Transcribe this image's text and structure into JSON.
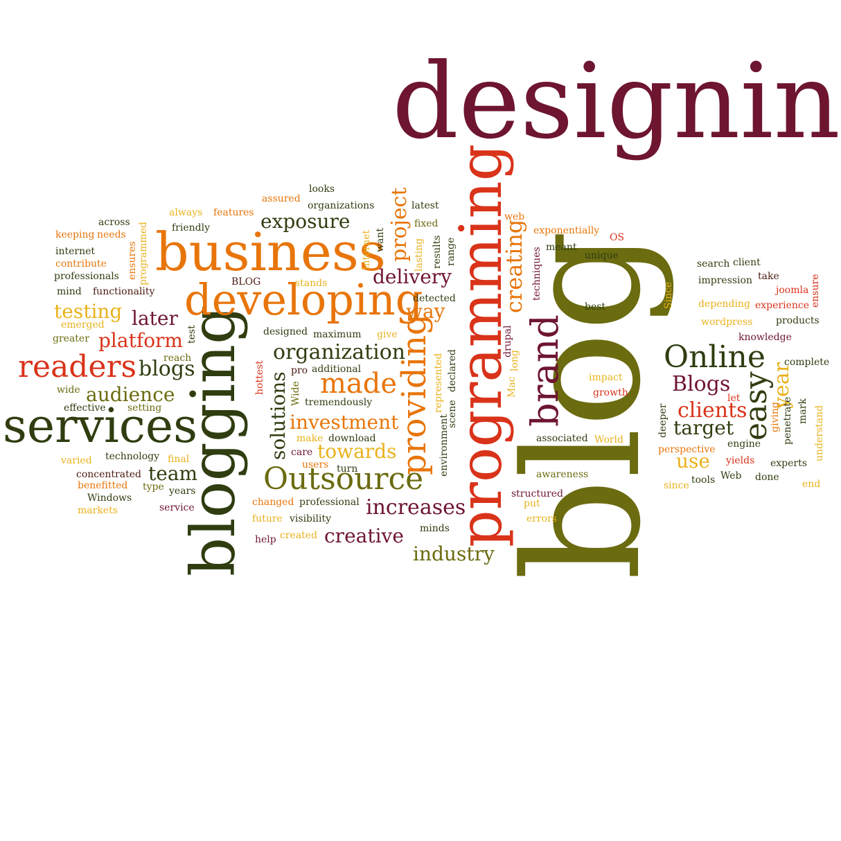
{
  "palette": {
    "maroon": "#6e1530",
    "orange": "#e8750a",
    "red": "#d9331a",
    "olive": "#6b6b10",
    "darkgreen": "#2f3d10",
    "gold": "#e9b21c",
    "brown": "#4a1a10"
  },
  "words": [
    {
      "id": "designing",
      "text": "designing"
    },
    {
      "id": "blog",
      "text": "blog"
    },
    {
      "id": "programming",
      "text": "programming"
    },
    {
      "id": "blogging",
      "text": "blogging"
    },
    {
      "id": "services",
      "text": "services"
    },
    {
      "id": "business",
      "text": "business"
    },
    {
      "id": "developing",
      "text": "developing"
    },
    {
      "id": "outsource",
      "text": "Outsource"
    },
    {
      "id": "online",
      "text": "Online"
    },
    {
      "id": "readers",
      "text": "readers"
    },
    {
      "id": "brand",
      "text": "brand"
    },
    {
      "id": "providing",
      "text": "providing"
    },
    {
      "id": "made",
      "text": "made"
    },
    {
      "id": "creating",
      "text": "creating"
    },
    {
      "id": "organization",
      "text": "organization"
    },
    {
      "id": "exposure",
      "text": "exposure"
    },
    {
      "id": "delivery",
      "text": "delivery"
    },
    {
      "id": "platform",
      "text": "platform"
    },
    {
      "id": "testing",
      "text": "testing"
    },
    {
      "id": "later",
      "text": "later"
    },
    {
      "id": "blogs",
      "text": "blogs"
    },
    {
      "id": "audience",
      "text": "audience"
    },
    {
      "id": "investment",
      "text": "investment"
    },
    {
      "id": "towards",
      "text": "towards"
    },
    {
      "id": "increases",
      "text": "increases"
    },
    {
      "id": "creative",
      "text": "creative"
    },
    {
      "id": "industry",
      "text": "industry"
    },
    {
      "id": "team",
      "text": "team"
    },
    {
      "id": "way",
      "text": "way"
    },
    {
      "id": "project",
      "text": "project"
    },
    {
      "id": "solutions",
      "text": "solutions"
    },
    {
      "id": "easy",
      "text": "easy"
    },
    {
      "id": "year",
      "text": "year"
    },
    {
      "id": "blogs2",
      "text": "Blogs"
    },
    {
      "id": "clients",
      "text": "clients"
    },
    {
      "id": "target",
      "text": "target"
    },
    {
      "id": "use",
      "text": "use"
    },
    {
      "id": "looks",
      "text": "looks"
    },
    {
      "id": "organizations",
      "text": "organizations"
    },
    {
      "id": "assured",
      "text": "assured"
    },
    {
      "id": "latest",
      "text": "latest"
    },
    {
      "id": "always",
      "text": "always"
    },
    {
      "id": "features",
      "text": "features"
    },
    {
      "id": "across",
      "text": "across"
    },
    {
      "id": "friendly",
      "text": "friendly"
    },
    {
      "id": "keeping",
      "text": "keeping"
    },
    {
      "id": "needs",
      "text": "needs"
    },
    {
      "id": "internet",
      "text": "internet"
    },
    {
      "id": "contribute",
      "text": "contribute"
    },
    {
      "id": "professionals",
      "text": "professionals"
    },
    {
      "id": "mind",
      "text": "mind"
    },
    {
      "id": "functionality",
      "text": "functionality"
    },
    {
      "id": "blog-upper",
      "text": "BLOG"
    },
    {
      "id": "stands",
      "text": "stands"
    },
    {
      "id": "emerged",
      "text": "emerged"
    },
    {
      "id": "greater",
      "text": "greater"
    },
    {
      "id": "reach",
      "text": "reach"
    },
    {
      "id": "wide",
      "text": "wide"
    },
    {
      "id": "effective",
      "text": "effective"
    },
    {
      "id": "setting",
      "text": "setting"
    },
    {
      "id": "varied",
      "text": "varied"
    },
    {
      "id": "technology",
      "text": "technology"
    },
    {
      "id": "final",
      "text": "final"
    },
    {
      "id": "concentrated",
      "text": "concentrated"
    },
    {
      "id": "benefitted",
      "text": "benefitted"
    },
    {
      "id": "type",
      "text": "type"
    },
    {
      "id": "years",
      "text": "years"
    },
    {
      "id": "windows",
      "text": "Windows"
    },
    {
      "id": "markets",
      "text": "markets"
    },
    {
      "id": "service",
      "text": "service"
    },
    {
      "id": "changed",
      "text": "changed"
    },
    {
      "id": "professional",
      "text": "professional"
    },
    {
      "id": "future",
      "text": "future"
    },
    {
      "id": "visibility",
      "text": "visibility"
    },
    {
      "id": "help",
      "text": "help"
    },
    {
      "id": "created",
      "text": "created"
    },
    {
      "id": "minds",
      "text": "minds"
    },
    {
      "id": "fixed",
      "text": "fixed"
    },
    {
      "id": "detected",
      "text": "detected"
    },
    {
      "id": "give",
      "text": "give"
    },
    {
      "id": "designed",
      "text": "designed"
    },
    {
      "id": "maximum",
      "text": "maximum"
    },
    {
      "id": "pro",
      "text": "pro"
    },
    {
      "id": "additional",
      "text": "additional"
    },
    {
      "id": "tremendously",
      "text": "tremendously"
    },
    {
      "id": "make",
      "text": "make"
    },
    {
      "id": "download",
      "text": "download"
    },
    {
      "id": "care",
      "text": "care"
    },
    {
      "id": "users",
      "text": "users"
    },
    {
      "id": "turn",
      "text": "turn"
    },
    {
      "id": "web",
      "text": "web"
    },
    {
      "id": "exponentially",
      "text": "exponentially"
    },
    {
      "id": "os",
      "text": "OS"
    },
    {
      "id": "meant",
      "text": "meant"
    },
    {
      "id": "unique",
      "text": "unique"
    },
    {
      "id": "search",
      "text": "search"
    },
    {
      "id": "client",
      "text": "client"
    },
    {
      "id": "impression",
      "text": "impression"
    },
    {
      "id": "take",
      "text": "take"
    },
    {
      "id": "joomla",
      "text": "joomla"
    },
    {
      "id": "best",
      "text": "best"
    },
    {
      "id": "depending",
      "text": "depending"
    },
    {
      "id": "experience",
      "text": "experience"
    },
    {
      "id": "wordpress",
      "text": "wordpress"
    },
    {
      "id": "products",
      "text": "products"
    },
    {
      "id": "knowledge",
      "text": "knowledge"
    },
    {
      "id": "impact",
      "text": "impact"
    },
    {
      "id": "growth",
      "text": "growth"
    },
    {
      "id": "let",
      "text": "let"
    },
    {
      "id": "complete",
      "text": "complete"
    },
    {
      "id": "associated",
      "text": "associated"
    },
    {
      "id": "world",
      "text": "World"
    },
    {
      "id": "perspective",
      "text": "perspective"
    },
    {
      "id": "engine",
      "text": "engine"
    },
    {
      "id": "yields",
      "text": "yields"
    },
    {
      "id": "experts",
      "text": "experts"
    },
    {
      "id": "awareness",
      "text": "awareness"
    },
    {
      "id": "tools",
      "text": "tools"
    },
    {
      "id": "web2",
      "text": "Web"
    },
    {
      "id": "done",
      "text": "done"
    },
    {
      "id": "since",
      "text": "since"
    },
    {
      "id": "end",
      "text": "end"
    },
    {
      "id": "structured",
      "text": "structured"
    },
    {
      "id": "put",
      "text": "put"
    },
    {
      "id": "errors",
      "text": "errors"
    },
    {
      "id": "v-ensures",
      "text": "ensures"
    },
    {
      "id": "v-programmed",
      "text": "programmed"
    },
    {
      "id": "v-test",
      "text": "test"
    },
    {
      "id": "v-internet",
      "text": "Internet"
    },
    {
      "id": "v-want",
      "text": "want"
    },
    {
      "id": "v-lasting",
      "text": "lasting"
    },
    {
      "id": "v-results",
      "text": "results"
    },
    {
      "id": "v-range",
      "text": "range"
    },
    {
      "id": "v-hottest",
      "text": "hottest"
    },
    {
      "id": "v-wide",
      "text": "Wide"
    },
    {
      "id": "v-represented",
      "text": "represented"
    },
    {
      "id": "v-declared",
      "text": "declared"
    },
    {
      "id": "v-scene",
      "text": "scene"
    },
    {
      "id": "v-environment",
      "text": "environment"
    },
    {
      "id": "v-drupal",
      "text": "drupal"
    },
    {
      "id": "v-long",
      "text": "long"
    },
    {
      "id": "v-mac",
      "text": "Mac"
    },
    {
      "id": "v-techniques",
      "text": "techniques"
    },
    {
      "id": "v-since",
      "text": "Since"
    },
    {
      "id": "v-ensure",
      "text": "ensure"
    },
    {
      "id": "v-deeper",
      "text": "deeper"
    },
    {
      "id": "v-giving",
      "text": "giving"
    },
    {
      "id": "v-mark",
      "text": "mark"
    },
    {
      "id": "v-penetrate",
      "text": "penetrate"
    },
    {
      "id": "v-understand",
      "text": "understand"
    }
  ]
}
